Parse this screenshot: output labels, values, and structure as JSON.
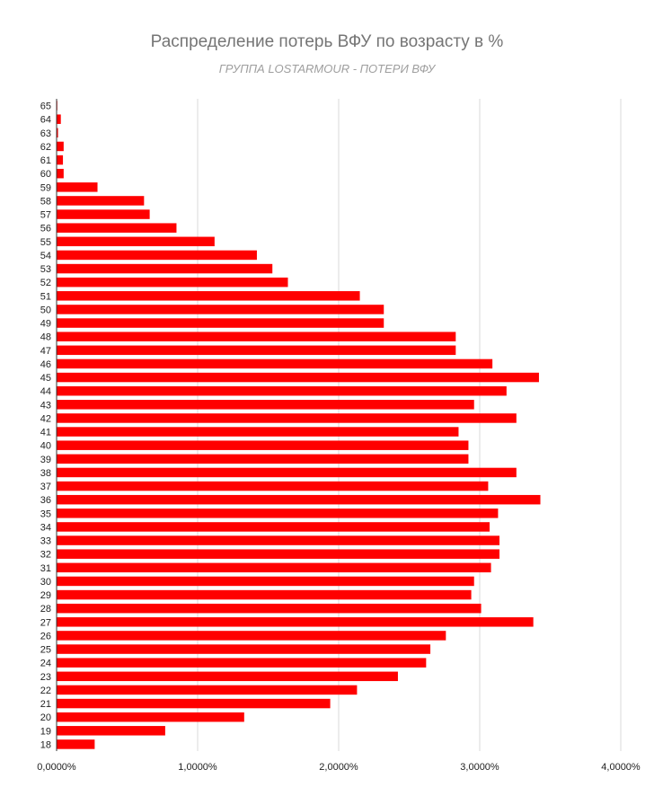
{
  "chart_data": {
    "type": "bar",
    "orientation": "horizontal",
    "title": "Распределение потерь ВФУ по возрасту в %",
    "subtitle": "ГРУППА LOSTARMOUR - ПОТЕРИ ВФУ",
    "categories": [
      "65",
      "64",
      "63",
      "62",
      "61",
      "60",
      "59",
      "58",
      "57",
      "56",
      "55",
      "54",
      "53",
      "52",
      "51",
      "50",
      "49",
      "48",
      "47",
      "46",
      "45",
      "44",
      "43",
      "42",
      "41",
      "40",
      "39",
      "38",
      "37",
      "36",
      "35",
      "34",
      "33",
      "32",
      "31",
      "30",
      "29",
      "28",
      "27",
      "26",
      "25",
      "24",
      "23",
      "22",
      "21",
      "20",
      "19",
      "18"
    ],
    "values": [
      0.005,
      0.03,
      0.01,
      0.05,
      0.045,
      0.05,
      0.29,
      0.62,
      0.66,
      0.85,
      1.12,
      1.42,
      1.53,
      1.64,
      2.15,
      2.32,
      2.32,
      2.83,
      2.83,
      3.09,
      3.42,
      3.19,
      2.96,
      3.26,
      2.85,
      2.92,
      2.92,
      3.26,
      3.06,
      3.43,
      3.13,
      3.07,
      3.14,
      3.14,
      3.08,
      2.96,
      2.94,
      3.01,
      3.38,
      2.76,
      2.65,
      2.62,
      2.42,
      2.13,
      1.94,
      1.33,
      0.77,
      0.27
    ],
    "xticks": [
      "0,0000%",
      "1,0000%",
      "2,0000%",
      "3,0000%",
      "4,0000%"
    ],
    "xlim": [
      0,
      4
    ],
    "bar_color": "#ff0000",
    "grid": true
  }
}
